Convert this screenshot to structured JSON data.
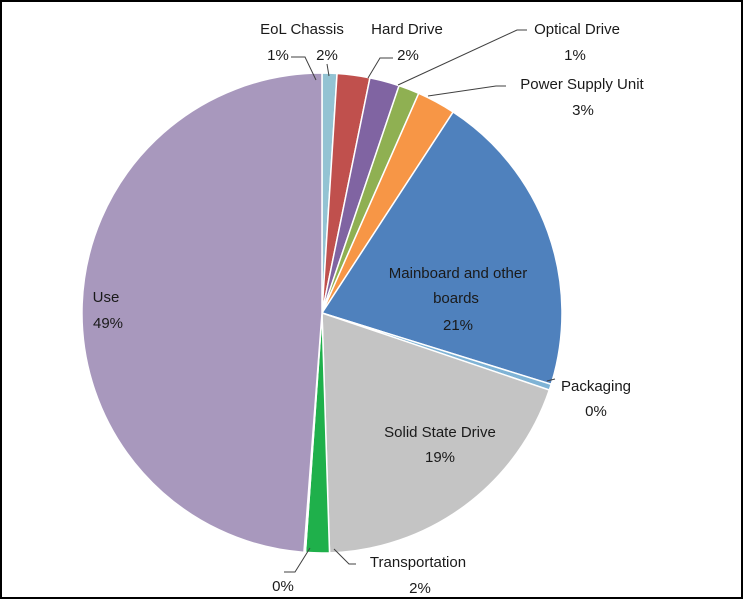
{
  "chart_data": {
    "type": "pie",
    "title": "",
    "slices": [
      {
        "name": "EoL Chassis",
        "percent_label": "1%",
        "value": 1.0,
        "color": "#93c3d3"
      },
      {
        "name": "",
        "percent_label": "2%",
        "value": 2.2,
        "color": "#c0504d"
      },
      {
        "name": "Hard Drive",
        "percent_label": "2%",
        "value": 2.0,
        "color": "#8064a2"
      },
      {
        "name": "Optical Drive",
        "percent_label": "1%",
        "value": 1.4,
        "color": "#8fb052"
      },
      {
        "name": "Power Supply Unit",
        "percent_label": "3%",
        "value": 2.6,
        "color": "#f79646"
      },
      {
        "name": "Mainboard and other boards",
        "percent_label": "21%",
        "value": 20.6,
        "color": "#4f81bd"
      },
      {
        "name": "Packaging",
        "percent_label": "0%",
        "value": 0.4,
        "color": "#7fb3d5"
      },
      {
        "name": "Solid State Drive",
        "percent_label": "19%",
        "value": 19.3,
        "color": "#c4c4c4"
      },
      {
        "name": "Transportation",
        "percent_label": "2%",
        "value": 1.6,
        "color": "#1fb04b"
      },
      {
        "name": "",
        "percent_label": "0%",
        "value": 0.1,
        "color": "#9dc3e6"
      },
      {
        "name": "Use",
        "percent_label": "49%",
        "value": 48.8,
        "color": "#a898bd"
      }
    ]
  }
}
